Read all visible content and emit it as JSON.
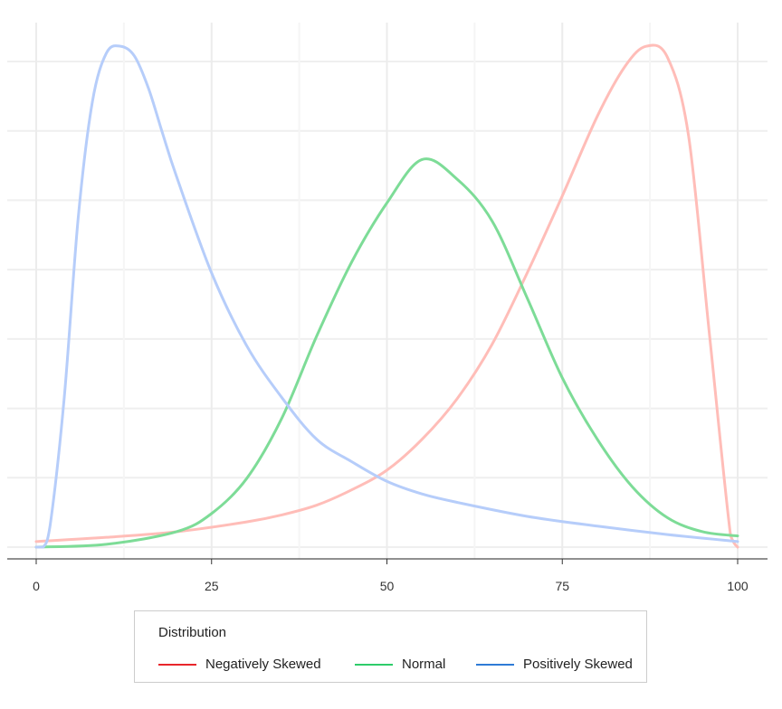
{
  "chart_data": {
    "type": "line",
    "title": "",
    "xlabel": "",
    "ylabel": "",
    "xlim": [
      0,
      100
    ],
    "ylim": [
      0,
      0.036
    ],
    "x_ticks": [
      "0",
      "25",
      "50",
      "75",
      "100"
    ],
    "y_ticks_labeled": false,
    "grid": true,
    "legend_position": "bottom",
    "legend_title": "Distribution",
    "series": [
      {
        "name": "Negatively Skewed",
        "color": "#ffbdb8",
        "legend_color": "#e8262b",
        "x": [
          0,
          10,
          20,
          30,
          35,
          40,
          45,
          50,
          55,
          60,
          65,
          70,
          75,
          80,
          84,
          87,
          90,
          93,
          96,
          99,
          100
        ],
        "y": [
          0.0004,
          0.0007,
          0.0011,
          0.0018,
          0.0023,
          0.003,
          0.0041,
          0.0055,
          0.0077,
          0.0106,
          0.0145,
          0.0196,
          0.0251,
          0.0308,
          0.0344,
          0.0358,
          0.035,
          0.0294,
          0.0151,
          0.0008,
          0.0
        ]
      },
      {
        "name": "Normal",
        "color": "#7ddc97",
        "legend_color": "#2ecc6a",
        "x": [
          0,
          10,
          20,
          25,
          30,
          35,
          40,
          45,
          50,
          55,
          60,
          65,
          70,
          75,
          80,
          85,
          90,
          95,
          100
        ],
        "y": [
          0.0,
          0.0002,
          0.0011,
          0.0024,
          0.0049,
          0.0092,
          0.0151,
          0.0204,
          0.0246,
          0.0277,
          0.0263,
          0.0233,
          0.0178,
          0.0121,
          0.0077,
          0.0043,
          0.0021,
          0.0011,
          0.0008
        ]
      },
      {
        "name": "Positively Skewed",
        "color": "#b6cdfa",
        "legend_color": "#2f7bd6",
        "x": [
          0,
          1,
          2,
          4,
          6,
          8,
          10,
          12,
          14,
          16,
          18,
          20,
          25,
          30,
          35,
          40,
          45,
          50,
          55,
          60,
          70,
          80,
          90,
          100
        ],
        "y": [
          0.0,
          0.0,
          0.0016,
          0.0107,
          0.0236,
          0.0318,
          0.0353,
          0.0358,
          0.0351,
          0.0328,
          0.0296,
          0.0265,
          0.0196,
          0.0144,
          0.0107,
          0.0077,
          0.0061,
          0.0047,
          0.0038,
          0.0032,
          0.0022,
          0.0015,
          0.0009,
          0.0004
        ]
      }
    ]
  }
}
